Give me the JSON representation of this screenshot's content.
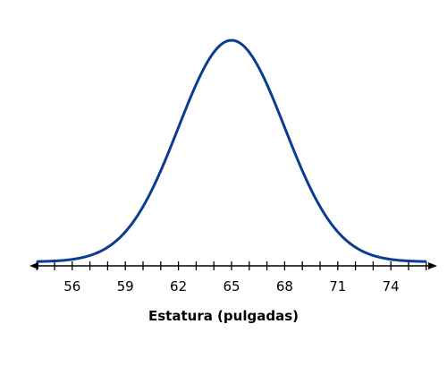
{
  "chart_data": {
    "type": "line",
    "curve": "normal-distribution",
    "mean": 65,
    "std_dev": 3,
    "xlim": [
      53.9,
      76.1
    ],
    "minor_tick_step": 1,
    "tick_labels": [
      {
        "value": 56,
        "label": "56"
      },
      {
        "value": 59,
        "label": "59"
      },
      {
        "value": 62,
        "label": "62"
      },
      {
        "value": 65,
        "label": "65"
      },
      {
        "value": 68,
        "label": "68"
      },
      {
        "value": 71,
        "label": "71"
      },
      {
        "value": 74,
        "label": "74"
      }
    ],
    "xlabel": "Estatura (pulgadas)",
    "ylabel": "",
    "grid": false,
    "colors": {
      "curve": "#0a3d91",
      "axis": "#000000"
    }
  }
}
